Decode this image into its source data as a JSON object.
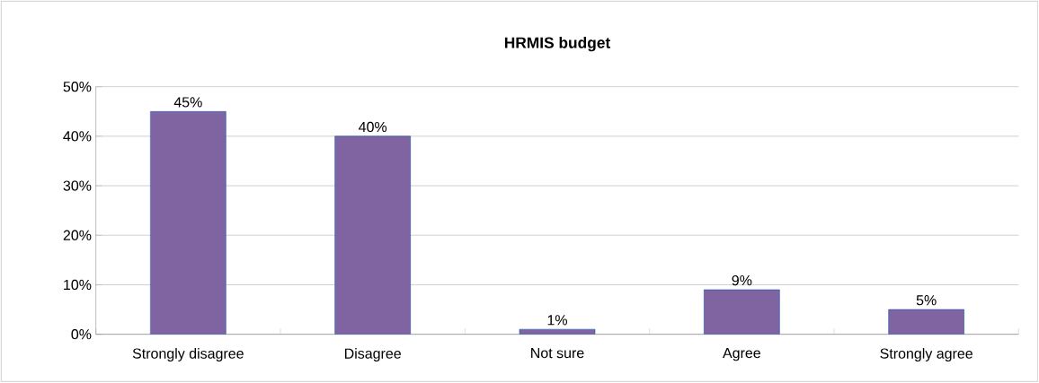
{
  "chart_data": {
    "type": "bar",
    "title": "HRMIS budget",
    "categories": [
      "Strongly disagree",
      "Disagree",
      "Not sure",
      "Agree",
      "Strongly agree"
    ],
    "values": [
      45,
      40,
      1,
      9,
      5
    ],
    "value_labels": [
      "45%",
      "40%",
      "1%",
      "9%",
      "5%"
    ],
    "color": "#8064a2",
    "ylim": [
      0,
      50
    ],
    "yticks": [
      {
        "value": 0,
        "label": "0%"
      },
      {
        "value": 10,
        "label": "10%"
      },
      {
        "value": 20,
        "label": "20%"
      },
      {
        "value": 30,
        "label": "30%"
      },
      {
        "value": 40,
        "label": "40%"
      },
      {
        "value": 50,
        "label": "50%"
      }
    ],
    "grid": "y"
  }
}
